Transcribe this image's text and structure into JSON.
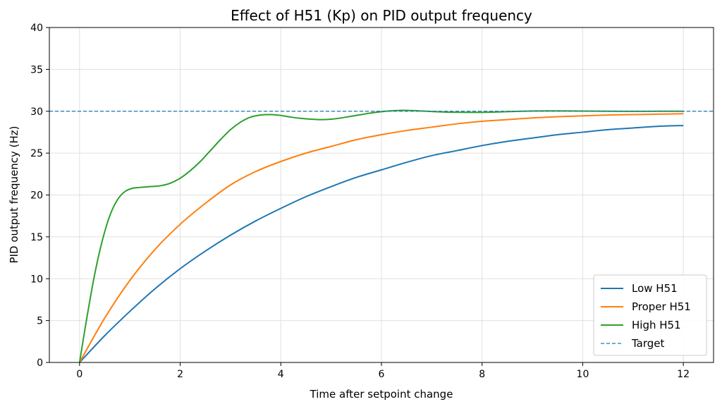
{
  "chart_data": {
    "type": "line",
    "title": "Effect of H51 (Kp) on PID output frequency",
    "xlabel": "Time after setpoint change",
    "ylabel": "PID output frequency (Hz)",
    "xlim": [
      -0.6,
      12.6
    ],
    "ylim": [
      0,
      40
    ],
    "xticks": [
      0,
      2,
      4,
      6,
      8,
      10,
      12
    ],
    "yticks": [
      0,
      5,
      10,
      15,
      20,
      25,
      30,
      35,
      40
    ],
    "grid": true,
    "legend_position": "bottom-right",
    "series": [
      {
        "name": "Low H51",
        "color": "#1f77b4",
        "style": "solid",
        "x": [
          0,
          0.5,
          1,
          1.5,
          2,
          2.5,
          3,
          3.5,
          4,
          4.5,
          5,
          5.5,
          6,
          6.5,
          7,
          7.5,
          8,
          8.5,
          9,
          9.5,
          10,
          10.5,
          11,
          11.5,
          12
        ],
        "y": [
          0,
          3.2,
          6.1,
          8.8,
          11.2,
          13.3,
          15.2,
          16.9,
          18.4,
          19.8,
          21.0,
          22.1,
          23.0,
          23.9,
          24.7,
          25.3,
          25.9,
          26.4,
          26.8,
          27.2,
          27.5,
          27.8,
          28.0,
          28.2,
          28.3
        ]
      },
      {
        "name": "Proper H51",
        "color": "#ff7f0e",
        "style": "solid",
        "x": [
          0,
          0.5,
          1,
          1.5,
          2,
          2.5,
          3,
          3.5,
          4,
          4.5,
          5,
          5.5,
          6,
          6.5,
          7,
          7.5,
          8,
          8.5,
          9,
          9.5,
          10,
          10.5,
          11,
          11.5,
          12
        ],
        "y": [
          0,
          5.3,
          9.8,
          13.5,
          16.5,
          19.0,
          21.2,
          22.8,
          24.0,
          25.0,
          25.8,
          26.6,
          27.2,
          27.7,
          28.1,
          28.5,
          28.8,
          29.0,
          29.2,
          29.35,
          29.45,
          29.55,
          29.6,
          29.65,
          29.7
        ]
      },
      {
        "name": "High H51",
        "color": "#2ca02c",
        "style": "solid",
        "x": [
          0,
          0.15,
          0.3,
          0.45,
          0.6,
          0.75,
          0.9,
          1.05,
          1.2,
          1.4,
          1.6,
          1.8,
          2,
          2.2,
          2.4,
          2.6,
          2.8,
          3,
          3.2,
          3.4,
          3.6,
          3.8,
          4,
          4.2,
          4.4,
          4.6,
          4.8,
          5,
          5.2,
          5.4,
          5.6,
          5.8,
          6,
          6.2,
          6.4,
          6.6,
          6.8,
          7,
          7.4,
          7.8,
          8.2,
          8.6,
          9,
          9.5,
          10,
          10.5,
          11,
          11.5,
          12
        ],
        "y": [
          0,
          5.5,
          10.5,
          14.5,
          17.5,
          19.4,
          20.4,
          20.8,
          20.9,
          21.0,
          21.1,
          21.4,
          22.0,
          22.9,
          24.0,
          25.3,
          26.6,
          27.8,
          28.7,
          29.3,
          29.55,
          29.6,
          29.5,
          29.3,
          29.15,
          29.05,
          29.0,
          29.05,
          29.2,
          29.4,
          29.6,
          29.8,
          29.95,
          30.05,
          30.1,
          30.08,
          30.03,
          29.97,
          29.88,
          29.86,
          29.9,
          29.97,
          30.03,
          30.04,
          30.02,
          30.0,
          29.99,
          30.0,
          30.0
        ]
      },
      {
        "name": "Target",
        "color": "#1f77b4",
        "style": "dashed",
        "x": [
          -0.6,
          12.6
        ],
        "y": [
          30,
          30
        ]
      }
    ]
  }
}
